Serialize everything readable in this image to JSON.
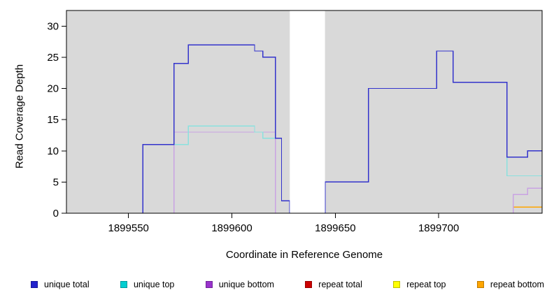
{
  "figure": {
    "background": "#ffffff",
    "border_color": "#000000"
  },
  "chart_data": {
    "type": "line",
    "subtype": "step-coverage-plot",
    "title": "",
    "xlabel": "Coordinate in Reference Genome",
    "ylabel": "Read Coverage Depth",
    "xlim": [
      1899520,
      1899750
    ],
    "ylim": [
      0,
      32.5
    ],
    "x_ticks": [
      1899550,
      1899600,
      1899650,
      1899700
    ],
    "y_ticks": [
      0,
      5,
      10,
      15,
      20,
      25,
      30
    ],
    "grid": false,
    "panel_background": "#d9d9d9",
    "legend_position": "bottom",
    "masked_region": {
      "x_start": 1899628,
      "x_end": 1899645,
      "color": "#ffffff"
    },
    "series": [
      {
        "name": "unique total",
        "color": "#2222CC",
        "line_color": "#3333CC",
        "points": [
          [
            1899520,
            0
          ],
          [
            1899557,
            11
          ],
          [
            1899572,
            24
          ],
          [
            1899579,
            27
          ],
          [
            1899611,
            26
          ],
          [
            1899615,
            25
          ],
          [
            1899621,
            12
          ],
          [
            1899624,
            2
          ],
          [
            1899628,
            0
          ],
          [
            1899645,
            5
          ],
          [
            1899666,
            20
          ],
          [
            1899699,
            26
          ],
          [
            1899707,
            21
          ],
          [
            1899733,
            9
          ],
          [
            1899743,
            10
          ]
        ]
      },
      {
        "name": "unique top",
        "color": "#00CED1",
        "line_color": "#8AE1DE",
        "points": [
          [
            1899520,
            0
          ],
          [
            1899557,
            11
          ],
          [
            1899579,
            14
          ],
          [
            1899611,
            13
          ],
          [
            1899615,
            12
          ],
          [
            1899624,
            2
          ],
          [
            1899628,
            0
          ],
          [
            1899645,
            5
          ],
          [
            1899666,
            20
          ],
          [
            1899699,
            26
          ],
          [
            1899707,
            21
          ],
          [
            1899733,
            6
          ]
        ]
      },
      {
        "name": "unique bottom",
        "color": "#9933CC",
        "line_color": "#C9A3E3",
        "points": [
          [
            1899520,
            0
          ],
          [
            1899572,
            13
          ],
          [
            1899621,
            0
          ],
          [
            1899736,
            3
          ],
          [
            1899743,
            4
          ]
        ]
      },
      {
        "name": "repeat total",
        "color": "#CC0000",
        "line_color": "#CC2222",
        "points": [
          [
            1899520,
            0
          ]
        ]
      },
      {
        "name": "repeat top",
        "color": "#FFFF00",
        "line_color": "#EEEE00",
        "points": [
          [
            1899520,
            0
          ]
        ]
      },
      {
        "name": "repeat bottom",
        "color": "#FFA500",
        "line_color": "#FFA500",
        "points": [
          [
            1899520,
            0
          ],
          [
            1899736,
            1
          ]
        ]
      }
    ],
    "draw_order": [
      "repeat top",
      "repeat total",
      "repeat bottom",
      "unique bottom",
      "unique top",
      "unique total"
    ]
  }
}
